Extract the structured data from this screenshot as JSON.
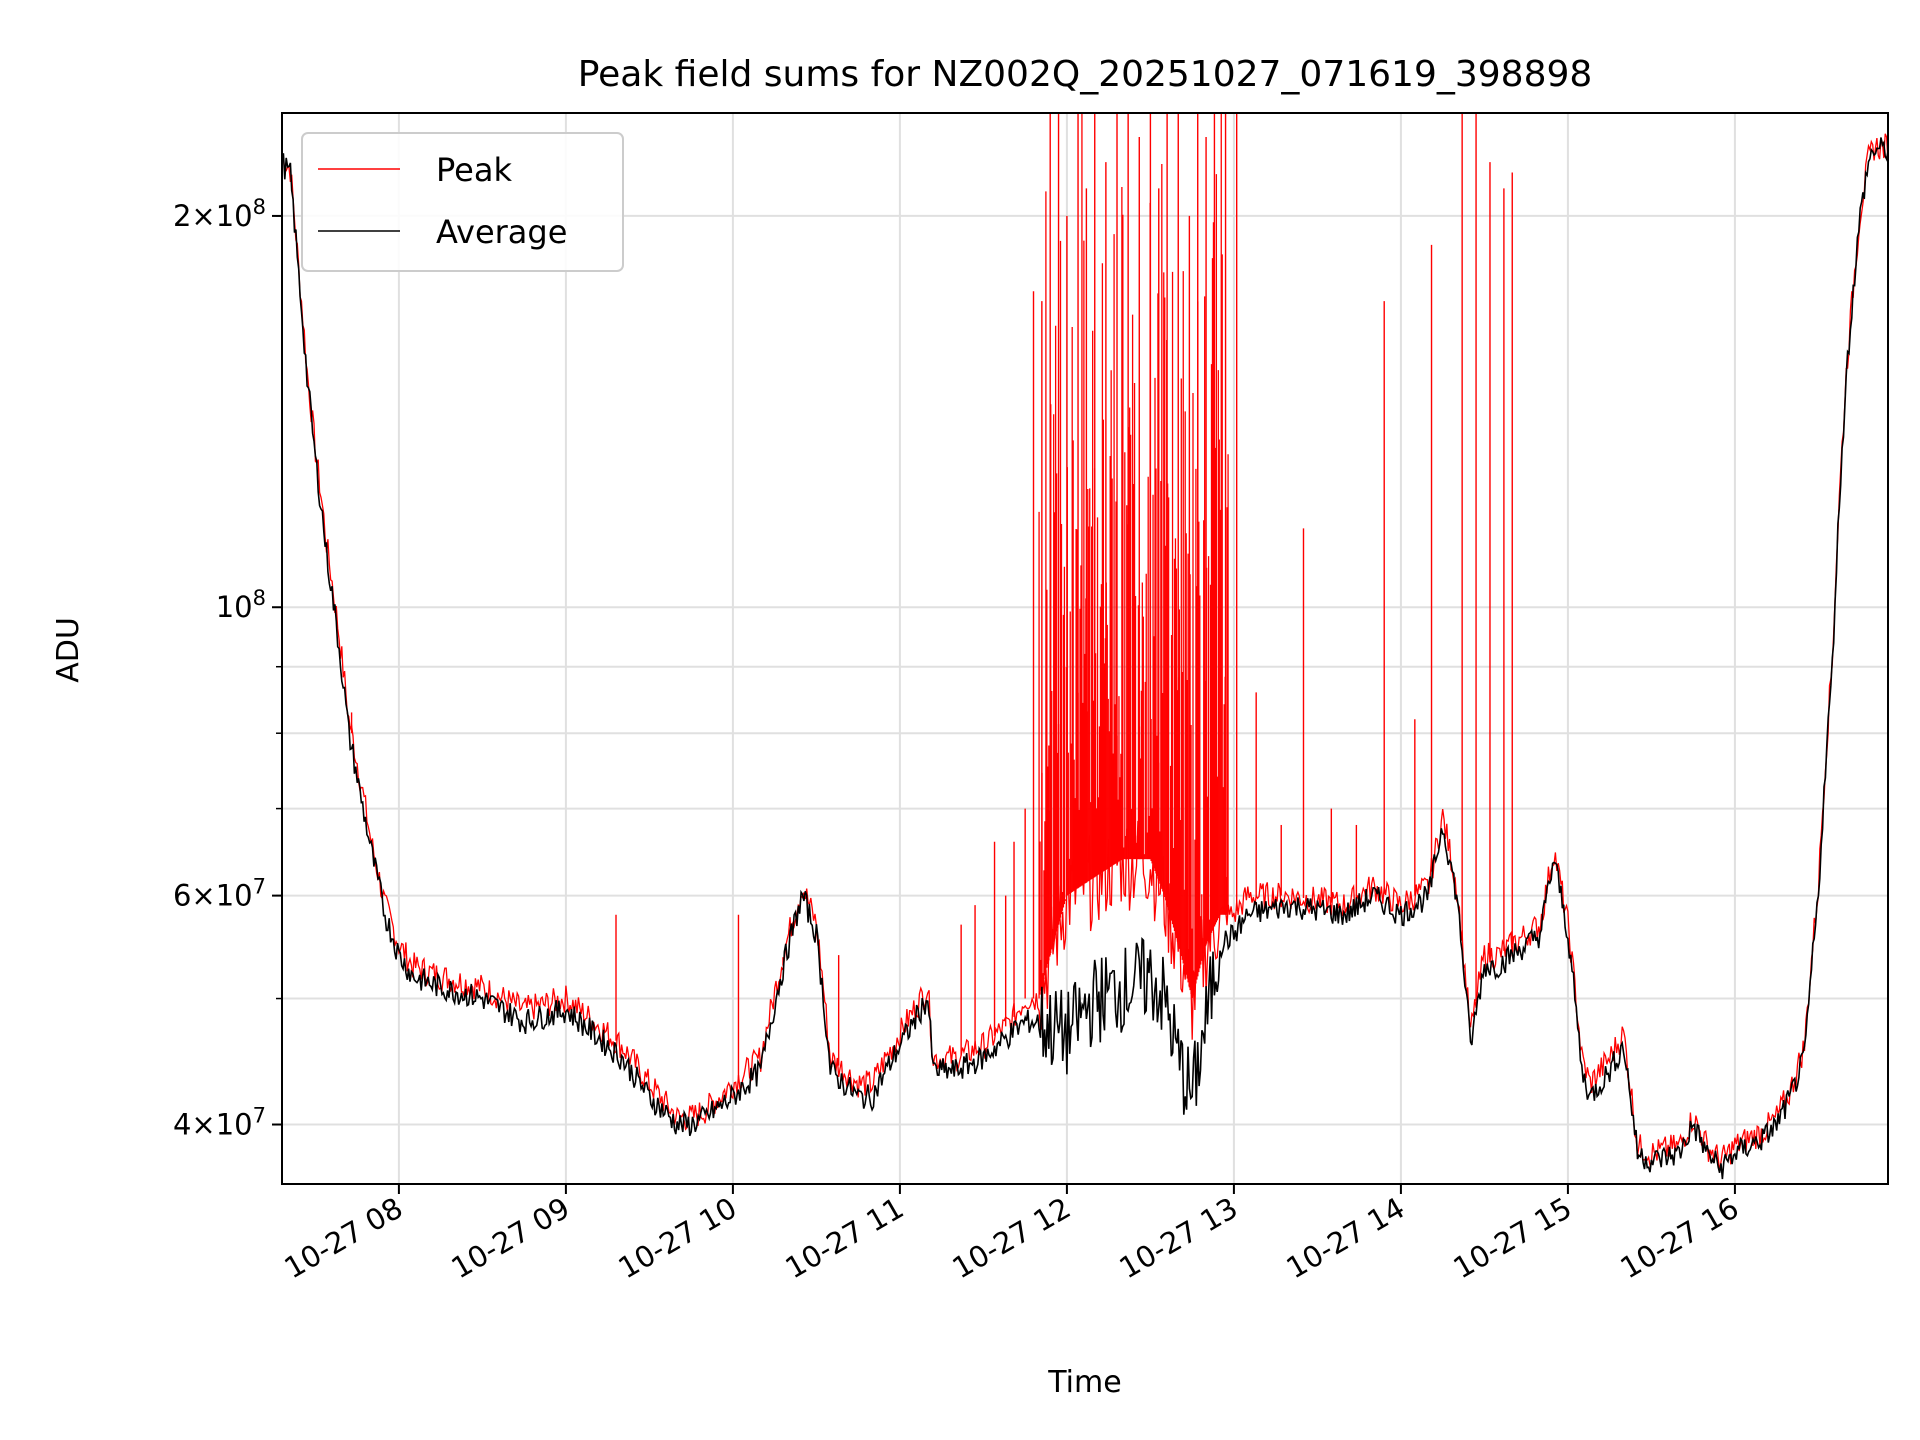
{
  "chart_data": {
    "type": "line",
    "title": "Peak field sums for NZ002Q_20251027_071619_398898",
    "xlabel": "Time",
    "ylabel": "ADU",
    "yscale": "log",
    "ylim": [
      36000000,
      240000000
    ],
    "xlim": [
      "2025-10-27 07:18",
      "2025-10-27 16:55"
    ],
    "grid": true,
    "legend_position": "upper-left",
    "x_tick_labels": [
      "10-27 08",
      "10-27 09",
      "10-27 10",
      "10-27 11",
      "10-27 12",
      "10-27 13",
      "10-27 14",
      "10-27 15",
      "10-27 16"
    ],
    "y_tick_labels": [
      {
        "value": 40000000,
        "mantissa": "4",
        "exponent": "7"
      },
      {
        "value": 60000000,
        "mantissa": "6",
        "exponent": "7"
      },
      {
        "value": 100000000,
        "mantissa": "",
        "exponent": "8"
      },
      {
        "value": 200000000,
        "mantissa": "2",
        "exponent": "8"
      }
    ],
    "colors": {
      "peak": "#ff0000",
      "average": "#000000"
    },
    "series": [
      {
        "name": "Average",
        "x": [
          "07:18",
          "07:21",
          "07:24",
          "07:27",
          "07:30",
          "07:34",
          "07:38",
          "07:42",
          "07:46",
          "07:50",
          "07:55",
          "08:00",
          "08:05",
          "08:15",
          "08:30",
          "08:45",
          "09:00",
          "09:10",
          "09:20",
          "09:30",
          "09:40",
          "09:45",
          "09:50",
          "10:00",
          "10:10",
          "10:20",
          "10:25",
          "10:30",
          "10:35",
          "10:40",
          "10:45",
          "10:50",
          "11:00",
          "11:05",
          "11:10",
          "11:12",
          "11:15",
          "11:20",
          "11:30",
          "11:40",
          "11:45",
          "11:50",
          "12:00",
          "12:10",
          "12:20",
          "12:30",
          "12:35",
          "12:40",
          "12:45",
          "12:50",
          "12:55",
          "13:00",
          "13:05",
          "13:20",
          "13:40",
          "13:50",
          "14:00",
          "14:10",
          "14:15",
          "14:20",
          "14:25",
          "14:30",
          "14:35",
          "14:40",
          "14:50",
          "14:55",
          "15:00",
          "15:05",
          "15:08",
          "15:15",
          "15:20",
          "15:25",
          "15:30",
          "15:40",
          "15:45",
          "15:50",
          "15:55",
          "16:00",
          "16:10",
          "16:15",
          "16:20",
          "16:25",
          "16:30",
          "16:35",
          "16:40",
          "16:45",
          "16:48",
          "16:50",
          "16:55"
        ],
        "values": [
          220000000,
          215000000,
          180000000,
          150000000,
          130000000,
          110000000,
          95000000,
          80000000,
          72000000,
          65000000,
          58000000,
          54000000,
          52000000,
          51000000,
          50000000,
          48000000,
          49000000,
          47000000,
          45000000,
          42000000,
          40000000,
          40000000,
          40500000,
          42000000,
          44000000,
          55000000,
          60000000,
          56000000,
          44000000,
          43000000,
          42000000,
          42000000,
          46000000,
          48000000,
          50000000,
          44000000,
          44000000,
          44000000,
          45000000,
          47000000,
          48000000,
          48000000,
          47000000,
          50000000,
          51000000,
          52000000,
          50000000,
          45000000,
          42000000,
          48000000,
          55000000,
          56000000,
          58000000,
          59000000,
          58000000,
          60000000,
          58000000,
          60000000,
          68000000,
          60000000,
          46000000,
          53000000,
          53000000,
          54000000,
          56000000,
          64000000,
          56000000,
          44000000,
          42000000,
          44000000,
          46000000,
          38000000,
          37500000,
          38000000,
          40000000,
          38000000,
          37000000,
          38000000,
          39000000,
          40000000,
          42000000,
          45000000,
          60000000,
          90000000,
          150000000,
          200000000,
          220000000,
          225000000,
          225000000
        ]
      },
      {
        "name": "Peak",
        "x": [
          "07:18",
          "07:21",
          "07:24",
          "07:27",
          "07:30",
          "07:34",
          "07:38",
          "07:42",
          "07:46",
          "07:50",
          "07:55",
          "08:00",
          "08:05",
          "08:15",
          "08:30",
          "08:45",
          "09:00",
          "09:10",
          "09:20",
          "09:30",
          "09:40",
          "09:45",
          "09:50",
          "10:00",
          "10:10",
          "10:20",
          "10:25",
          "10:30",
          "10:35",
          "10:40",
          "10:45",
          "10:50",
          "11:00",
          "11:05",
          "11:10",
          "11:12",
          "11:15",
          "11:20",
          "11:30",
          "11:40",
          "11:45",
          "11:50",
          "12:00",
          "12:10",
          "12:20",
          "12:30",
          "12:35",
          "12:40",
          "12:45",
          "12:50",
          "12:55",
          "13:00",
          "13:05",
          "13:20",
          "13:40",
          "13:50",
          "14:00",
          "14:10",
          "14:15",
          "14:20",
          "14:25",
          "14:30",
          "14:35",
          "14:40",
          "14:50",
          "14:55",
          "15:00",
          "15:05",
          "15:08",
          "15:15",
          "15:20",
          "15:25",
          "15:30",
          "15:40",
          "15:45",
          "15:50",
          "15:55",
          "16:00",
          "16:10",
          "16:15",
          "16:20",
          "16:25",
          "16:30",
          "16:35",
          "16:40",
          "16:45",
          "16:48",
          "16:50",
          "16:55"
        ],
        "values": [
          222000000,
          217000000,
          182000000,
          152000000,
          132000000,
          112000000,
          97000000,
          82000000,
          74000000,
          66000000,
          59000000,
          55000000,
          53000000,
          52000000,
          51000000,
          49000000,
          50000000,
          48000000,
          46000000,
          43000000,
          40500000,
          40500000,
          41000000,
          43000000,
          45000000,
          56000000,
          61000000,
          57000000,
          45000000,
          44000000,
          43000000,
          43000000,
          47000000,
          49000000,
          51000000,
          45000000,
          45000000,
          45000000,
          46000000,
          48000000,
          50000000,
          50000000,
          60000000,
          62000000,
          64000000,
          64000000,
          60000000,
          55000000,
          50000000,
          55000000,
          58000000,
          58000000,
          60000000,
          60000000,
          59000000,
          61000000,
          59000000,
          61000000,
          69000000,
          61000000,
          47000000,
          54000000,
          54000000,
          55000000,
          57000000,
          65000000,
          57000000,
          45000000,
          43000000,
          45000000,
          47000000,
          38500000,
          38000000,
          38500000,
          40500000,
          38500000,
          37500000,
          38500000,
          39500000,
          40500000,
          42500000,
          46000000,
          61000000,
          91000000,
          151000000,
          201000000,
          221000000,
          226000000,
          226000000
        ]
      }
    ],
    "peak_spikes": {
      "x": [
        "07:43",
        "09:18",
        "10:02",
        "10:18",
        "10:38",
        "11:22",
        "11:27",
        "11:34",
        "11:38",
        "11:41",
        "11:45",
        "11:48",
        "11:51",
        "11:54",
        "11:57",
        "12:00",
        "12:04",
        "12:07",
        "12:10",
        "12:14",
        "12:18",
        "12:22",
        "12:26",
        "12:30",
        "12:33",
        "12:36",
        "12:40",
        "12:44",
        "12:47",
        "12:50",
        "12:53",
        "12:57",
        "13:01",
        "13:08",
        "13:17",
        "13:25",
        "13:35",
        "13:44",
        "13:54",
        "14:05",
        "14:11",
        "14:22",
        "14:27",
        "14:32",
        "14:37",
        "14:40"
      ],
      "values": [
        83000000,
        58000000,
        58000000,
        53000000,
        54000000,
        57000000,
        59000000,
        66000000,
        60000000,
        66000000,
        70000000,
        175000000,
        172000000,
        240000000,
        240000000,
        200000000,
        240000000,
        210000000,
        240000000,
        220000000,
        240000000,
        240000000,
        230000000,
        240000000,
        210000000,
        240000000,
        240000000,
        200000000,
        240000000,
        230000000,
        240000000,
        240000000,
        240000000,
        86000000,
        68000000,
        115000000,
        70000000,
        68000000,
        172000000,
        82000000,
        190000000,
        240000000,
        240000000,
        220000000,
        210000000,
        216000000
      ]
    }
  }
}
